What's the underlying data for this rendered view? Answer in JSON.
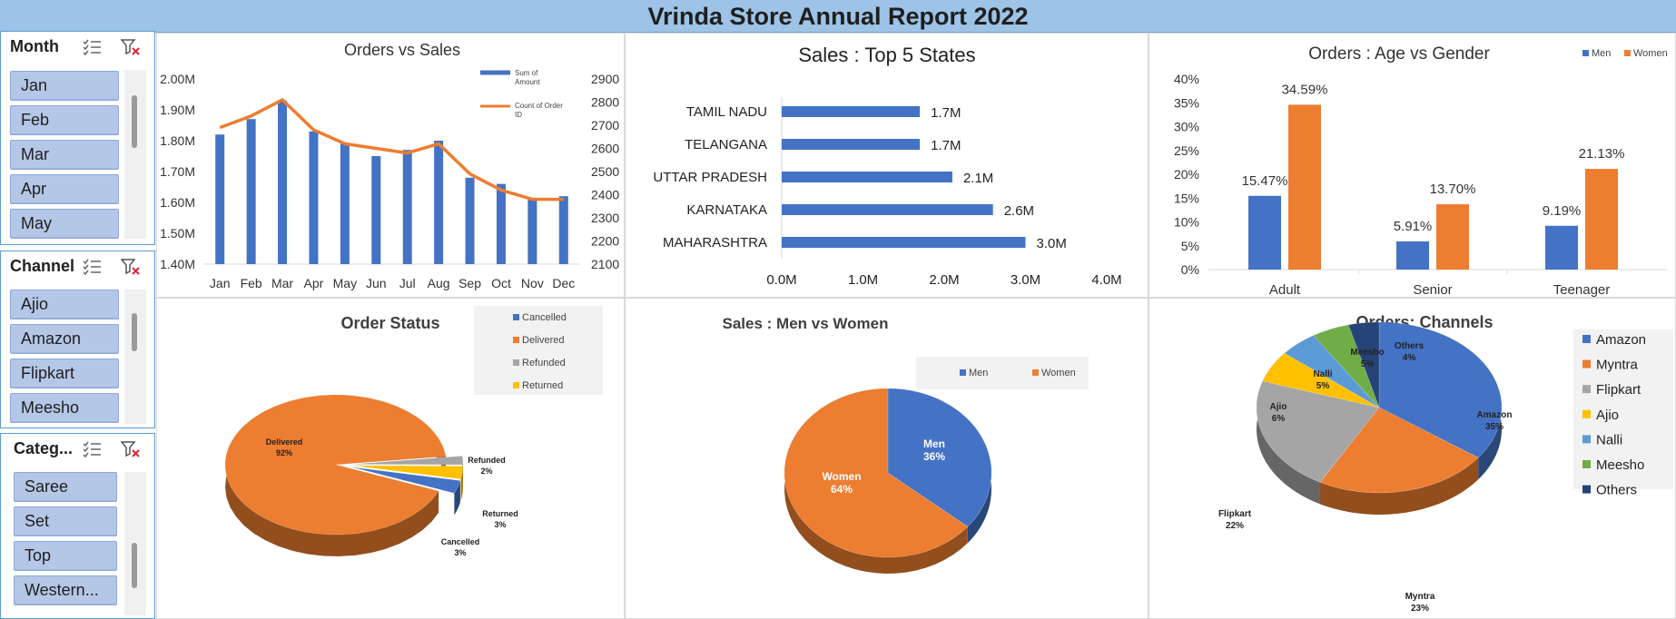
{
  "report_title": "Vrinda Store Annual Report 2022",
  "slicers": [
    {
      "title": "Month",
      "items": [
        "Jan",
        "Feb",
        "Mar",
        "Apr",
        "May"
      ]
    },
    {
      "title": "Channel",
      "items": [
        "Ajio",
        "Amazon",
        "Flipkart",
        "Meesho"
      ]
    },
    {
      "title": "Categ...",
      "items": [
        "Saree",
        "Set",
        "Top",
        "Western..."
      ]
    }
  ],
  "icons": {
    "multiselect": "multi-select-icon",
    "clear_filter": "clear-filter-icon"
  },
  "colors": {
    "blue": "#4472c4",
    "orange": "#ed7d31",
    "gray": "#a5a5a5",
    "yellow": "#ffc000",
    "lightblue": "#5b9bd5",
    "green": "#70ad47",
    "navy": "#264478",
    "slicer_item": "#b4c7e7",
    "title_bar": "#9dc3e6"
  },
  "chart_data": [
    {
      "id": "orders_vs_sales",
      "type": "bar",
      "title": "Orders vs Sales",
      "categories": [
        "Jan",
        "Feb",
        "Mar",
        "Apr",
        "May",
        "Jun",
        "Jul",
        "Aug",
        "Sep",
        "Oct",
        "Nov",
        "Dec"
      ],
      "series": [
        {
          "name": "Sum of Amount",
          "type": "bar",
          "axis": "left",
          "values": [
            1.82,
            1.87,
            1.93,
            1.83,
            1.79,
            1.75,
            1.77,
            1.8,
            1.68,
            1.66,
            1.61,
            1.62
          ]
        },
        {
          "name": "Count of Order ID",
          "type": "line",
          "axis": "right",
          "values": [
            2690,
            2740,
            2810,
            2680,
            2620,
            2600,
            2580,
            2620,
            2490,
            2420,
            2380,
            2380
          ]
        }
      ],
      "left_ticks": [
        "2.00M",
        "1.90M",
        "1.80M",
        "1.70M",
        "1.60M",
        "1.50M",
        "1.40M"
      ],
      "right_ticks": [
        "2900",
        "2800",
        "2700",
        "2600",
        "2500",
        "2400",
        "2300",
        "2200",
        "2100"
      ],
      "ylim_left": [
        1.4,
        2.0
      ],
      "ylim_right": [
        2100,
        2900
      ],
      "legend_position": "top-right"
    },
    {
      "id": "top5_states",
      "type": "bar",
      "orientation": "horizontal",
      "title": "Sales : Top 5 States",
      "categories": [
        "TAMIL NADU",
        "TELANGANA",
        "UTTAR PRADESH",
        "KARNATAKA",
        "MAHARASHTRA"
      ],
      "values": [
        1.7,
        1.7,
        2.1,
        2.6,
        3.0
      ],
      "value_labels": [
        "1.7M",
        "1.7M",
        "2.1M",
        "2.6M",
        "3.0M"
      ],
      "x_ticks": [
        "0.0M",
        "1.0M",
        "2.0M",
        "3.0M",
        "4.0M"
      ],
      "xlim": [
        0,
        4.0
      ],
      "legend": "none"
    },
    {
      "id": "age_vs_gender",
      "type": "bar",
      "title": "Orders : Age vs Gender",
      "categories": [
        "Adult",
        "Senior",
        "Teenager"
      ],
      "series": [
        {
          "name": "Men",
          "values": [
            15.47,
            5.91,
            9.19
          ]
        },
        {
          "name": "Women",
          "values": [
            34.59,
            13.7,
            21.13
          ]
        }
      ],
      "value_labels": [
        [
          "15.47%",
          "5.91%",
          "9.19%"
        ],
        [
          "34.59%",
          "13.70%",
          "21.13%"
        ]
      ],
      "y_ticks": [
        "40%",
        "35%",
        "30%",
        "25%",
        "20%",
        "15%",
        "10%",
        "5%",
        "0%"
      ],
      "ylim": [
        0,
        40
      ],
      "legend_position": "top-right"
    },
    {
      "id": "order_status",
      "type": "pie",
      "title": "Order Status",
      "categories": [
        "Cancelled",
        "Delivered",
        "Refunded",
        "Returned"
      ],
      "values": [
        3,
        92,
        2,
        3
      ],
      "slice_labels": {
        "Delivered": "92%",
        "Refunded": "2%",
        "Returned": "3%",
        "Cancelled": "3%"
      },
      "legend_position": "top-right"
    },
    {
      "id": "men_vs_women",
      "type": "pie",
      "title": "Sales : Men vs Women",
      "categories": [
        "Men",
        "Women"
      ],
      "values": [
        36,
        64
      ],
      "slice_labels": {
        "Men": "36%",
        "Women": "64%"
      },
      "legend_position": "top"
    },
    {
      "id": "channels",
      "type": "pie",
      "title": "Orders: Channels",
      "categories": [
        "Amazon",
        "Myntra",
        "Flipkart",
        "Ajio",
        "Nalli",
        "Meesho",
        "Others"
      ],
      "values": [
        35,
        23,
        22,
        6,
        5,
        5,
        4
      ],
      "slice_labels": {
        "Amazon": "35%",
        "Myntra": "23%",
        "Flipkart": "22%",
        "Ajio": "6%",
        "Nalli": "5%",
        "Meesho": "5%",
        "Others": "4%"
      },
      "legend_position": "right"
    }
  ]
}
